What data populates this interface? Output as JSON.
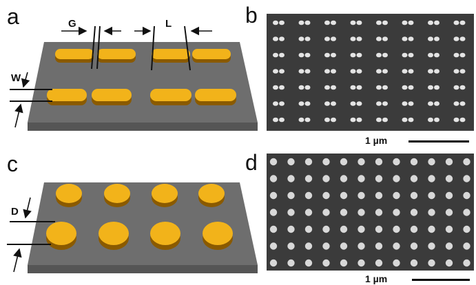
{
  "panels": {
    "a": {
      "letter": "a",
      "labels": {
        "gap": "G",
        "length": "L",
        "width": "W"
      }
    },
    "b": {
      "letter": "b",
      "scale_label": "1 µm"
    },
    "c": {
      "letter": "c",
      "labels": {
        "diameter": "D"
      }
    },
    "d": {
      "letter": "d",
      "scale_label": "1 µm"
    }
  },
  "colors": {
    "particle_top": "#F2B31A",
    "particle_side": "#8A5A00",
    "substrate_top": "#6E6E6E",
    "substrate_side": "#555555",
    "sem_background": "#3B3B3B"
  }
}
